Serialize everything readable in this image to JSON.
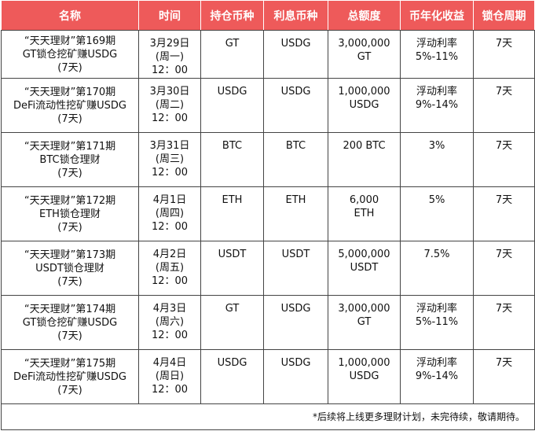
{
  "headers": [
    "名称",
    "时间",
    "持仓币种",
    "利息币种",
    "总额度",
    "币年化收益",
    "锁仓周期"
  ],
  "rows": [
    {
      "name": [
        "“天天理财”第169期",
        "GT锁仓挖矿赚USDG",
        "(7天)"
      ],
      "time": [
        "3月29日",
        "(周一)",
        "12：00"
      ],
      "hold": "GT",
      "interest": "USDG",
      "total": [
        "3,000,000",
        "GT"
      ],
      "apy": [
        "浮动利率",
        "5%-11%"
      ],
      "period": "7天"
    },
    {
      "name": [
        "“天天理财”第170期",
        "DeFi流动性挖矿赚USDG",
        "(7天)"
      ],
      "time": [
        "3月30日",
        "(周二)",
        "12：00"
      ],
      "hold": "USDG",
      "interest": "USDG",
      "total": [
        "1,000,000",
        "USDG"
      ],
      "apy": [
        "浮动利率",
        "9%-14%"
      ],
      "period": "7天"
    },
    {
      "name": [
        "“天天理财”第171期",
        "BTC锁仓理财",
        "(7天)"
      ],
      "time": [
        "3月31日",
        "(周三)",
        "12：00"
      ],
      "hold": "BTC",
      "interest": "BTC",
      "total": [
        "200 BTC"
      ],
      "apy": [
        "3%"
      ],
      "period": "7天"
    },
    {
      "name": [
        "“天天理财”第172期",
        "ETH锁仓理财",
        "(7天)"
      ],
      "time": [
        "4月1日",
        "(周四)",
        "12：00"
      ],
      "hold": "ETH",
      "interest": "ETH",
      "total": [
        "6,000",
        "ETH"
      ],
      "apy": [
        "5%"
      ],
      "period": "7天"
    },
    {
      "name": [
        "“天天理财”第173期",
        "USDT锁仓理财",
        "(7天)"
      ],
      "time": [
        "4月2日",
        "(周五)",
        "12：00"
      ],
      "hold": "USDT",
      "interest": "USDT",
      "total": [
        "5,000,000",
        "USDT"
      ],
      "apy": [
        "7.5%"
      ],
      "period": "7天"
    },
    {
      "name": [
        "“天天理财”第174期",
        "GT锁仓挖矿赚USDG",
        "(7天)"
      ],
      "time": [
        "4月3日",
        "(周六)",
        "12：00"
      ],
      "hold": "GT",
      "interest": "USDG",
      "total": [
        "3,000,000",
        "GT"
      ],
      "apy": [
        "浮动利率",
        "5%-11%"
      ],
      "period": "7天"
    },
    {
      "name": [
        "“天天理财”第175期",
        "DeFi流动性挖矿赚USDG",
        "(7天)"
      ],
      "time": [
        "4月4日",
        "(周日)",
        "12：00"
      ],
      "hold": "USDG",
      "interest": "USDG",
      "total": [
        "1,000,000",
        "USDG"
      ],
      "apy": [
        "浮动利率",
        "9%-14%"
      ],
      "period": "7天"
    }
  ],
  "note": "*后续将上线更多理财计划，未完待续，敬请期待。",
  "colors": {
    "header_bg": "#ee5a5a",
    "header_text": "#ffffff",
    "border": "#444444"
  }
}
